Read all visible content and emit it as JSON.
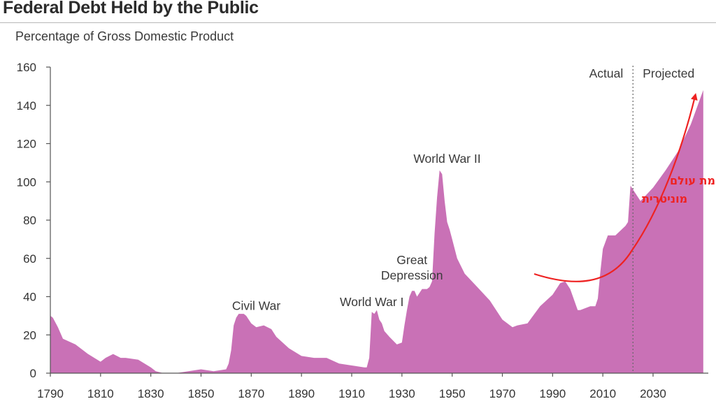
{
  "chart_data": {
    "type": "area",
    "title": "Federal Debt Held by the Public",
    "subtitle": "Percentage of Gross Domestic Product",
    "xlabel": "",
    "ylabel": "",
    "xlim": [
      1790,
      2052
    ],
    "ylim": [
      0,
      160
    ],
    "x_ticks": [
      1790,
      1810,
      1830,
      1850,
      1870,
      1890,
      1910,
      1930,
      1950,
      1970,
      1990,
      2010,
      2030
    ],
    "y_ticks": [
      0,
      20,
      40,
      60,
      80,
      100,
      120,
      140,
      160
    ],
    "fill_color": "#c971b6",
    "series": [
      {
        "x": [
          1790,
          1791,
          1793,
          1795,
          1800,
          1805,
          1810,
          1812,
          1815,
          1818,
          1820,
          1825,
          1830,
          1832,
          1835,
          1840,
          1845,
          1850,
          1855,
          1860,
          1861,
          1862,
          1863,
          1864,
          1865,
          1866,
          1867,
          1868,
          1870,
          1872,
          1875,
          1878,
          1880,
          1885,
          1890,
          1895,
          1900,
          1905,
          1910,
          1915,
          1916,
          1917,
          1918,
          1919,
          1920,
          1921,
          1922,
          1923,
          1925,
          1928,
          1930,
          1931,
          1932,
          1933,
          1934,
          1935,
          1936,
          1938,
          1940,
          1941,
          1942,
          1943,
          1944,
          1945,
          1946,
          1947,
          1948,
          1949,
          1950,
          1952,
          1955,
          1960,
          1965,
          1970,
          1974,
          1976,
          1980,
          1985,
          1990,
          1993,
          1995,
          1997,
          2000,
          2001,
          2005,
          2007,
          2008,
          2009,
          2010,
          2012,
          2015,
          2019,
          2020,
          2021,
          2025,
          2030,
          2035,
          2040,
          2045,
          2050
        ],
        "values": [
          30,
          29,
          24,
          18,
          15,
          10,
          6,
          8,
          10,
          8,
          8,
          7,
          3,
          1,
          0,
          0,
          1,
          2,
          1,
          2,
          5,
          12,
          25,
          29,
          31,
          31,
          31,
          30,
          26,
          24,
          25,
          23,
          19,
          13,
          9,
          8,
          8,
          5,
          4,
          3,
          3,
          8,
          32,
          31,
          33,
          28,
          26,
          22,
          19,
          15,
          16,
          25,
          33,
          40,
          43,
          43,
          40,
          44,
          44,
          45,
          48,
          73,
          92,
          106,
          104,
          90,
          79,
          75,
          70,
          60,
          52,
          45,
          38,
          28,
          24,
          25,
          26,
          35,
          41,
          47,
          48,
          44,
          33,
          33,
          35,
          35,
          39,
          53,
          65,
          72,
          72,
          77,
          79,
          98,
          90,
          97,
          106,
          116,
          130,
          148
        ]
      }
    ],
    "actual_label": "Actual",
    "projected_label": "Projected",
    "divider_year": 2022,
    "annotations": [
      {
        "text": "Civil War",
        "x": 1872,
        "y": 33
      },
      {
        "text": "World War I",
        "x": 1918,
        "y": 35
      },
      {
        "text": "Great",
        "x": 1934,
        "y": 57
      },
      {
        "text": "Depression",
        "x": 1934,
        "y": 49
      },
      {
        "text": "World War II",
        "x": 1948,
        "y": 110
      }
    ],
    "overlay_note": {
      "lines": [
        "עידן מלחמת עולם",
        "מוניטרית"
      ],
      "color": "#ee2222"
    }
  }
}
